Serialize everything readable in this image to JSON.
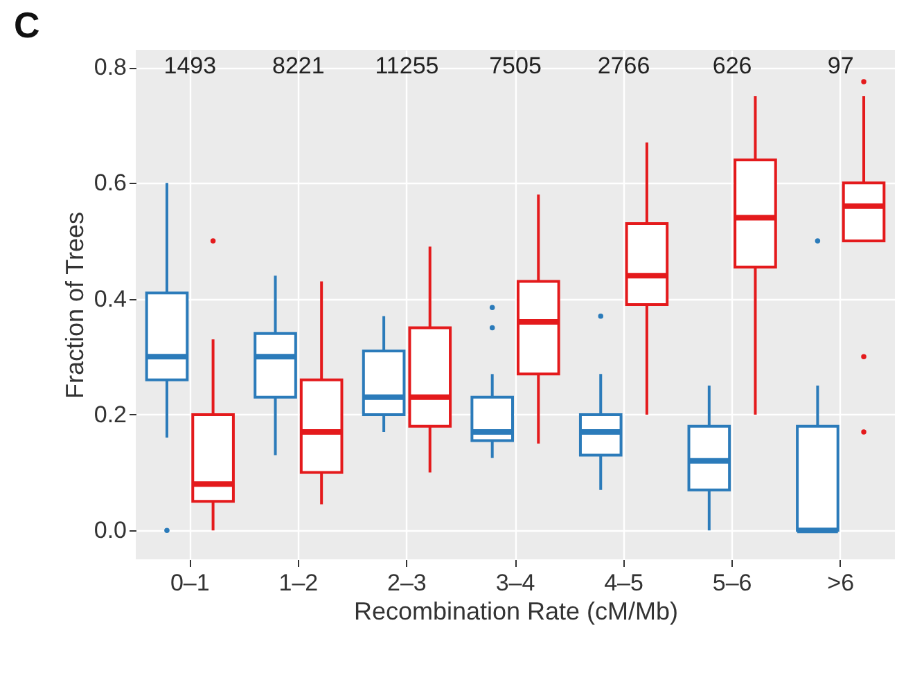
{
  "chart_data": {
    "type": "box",
    "title": "C",
    "xlabel": "Recombination Rate (cM/Mb)",
    "ylabel": "Fraction of Trees",
    "categories": [
      "0–1",
      "1–2",
      "2–3",
      "3–4",
      "4–5",
      "5–6",
      ">6"
    ],
    "ylim": [
      -0.05,
      0.83
    ],
    "yticks": [
      {
        "value": 0,
        "label": "0.0"
      },
      {
        "value": 0.2,
        "label": "0.2"
      },
      {
        "value": 0.4,
        "label": "0.4"
      },
      {
        "value": 0.6,
        "label": "0.6"
      },
      {
        "value": 0.8,
        "label": "0.8"
      }
    ],
    "grid": true,
    "series": [
      {
        "color": "#2b7bba",
        "boxes": [
          {
            "low": 0.16,
            "q1": 0.26,
            "median": 0.3,
            "q3": 0.41,
            "high": 0.6,
            "outliers": [
              0.0
            ]
          },
          {
            "low": 0.13,
            "q1": 0.23,
            "median": 0.3,
            "q3": 0.34,
            "high": 0.44
          },
          {
            "low": 0.17,
            "q1": 0.2,
            "median": 0.23,
            "q3": 0.31,
            "high": 0.37
          },
          {
            "low": 0.125,
            "q1": 0.155,
            "median": 0.17,
            "q3": 0.23,
            "high": 0.27,
            "outliers": [
              0.385,
              0.35
            ]
          },
          {
            "low": 0.07,
            "q1": 0.13,
            "median": 0.17,
            "q3": 0.2,
            "high": 0.27,
            "outliers": [
              0.37
            ]
          },
          {
            "low": 0.0,
            "q1": 0.07,
            "median": 0.12,
            "q3": 0.18,
            "high": 0.25
          },
          {
            "low": 0.0,
            "q1": 0.0,
            "median": 0.0,
            "q3": 0.18,
            "high": 0.25,
            "outliers": [
              0.5
            ]
          }
        ]
      },
      {
        "color": "#e41a1c",
        "boxes": [
          {
            "low": 0.0,
            "q1": 0.05,
            "median": 0.08,
            "q3": 0.2,
            "high": 0.33,
            "outliers": [
              0.5
            ]
          },
          {
            "low": 0.045,
            "q1": 0.1,
            "median": 0.17,
            "q3": 0.26,
            "high": 0.43
          },
          {
            "low": 0.1,
            "q1": 0.18,
            "median": 0.23,
            "q3": 0.35,
            "high": 0.49
          },
          {
            "low": 0.15,
            "q1": 0.27,
            "median": 0.36,
            "q3": 0.43,
            "high": 0.58
          },
          {
            "low": 0.2,
            "q1": 0.39,
            "median": 0.44,
            "q3": 0.53,
            "high": 0.67
          },
          {
            "low": 0.2,
            "q1": 0.455,
            "median": 0.54,
            "q3": 0.64,
            "high": 0.75
          },
          {
            "low": 0.5,
            "q1": 0.5,
            "median": 0.56,
            "q3": 0.6,
            "high": 0.75,
            "outliers": [
              0.775,
              0.3,
              0.17
            ]
          }
        ]
      }
    ],
    "annotations": [
      "1493",
      "8221",
      "11255",
      "7505",
      "2766",
      "626",
      "97"
    ]
  }
}
